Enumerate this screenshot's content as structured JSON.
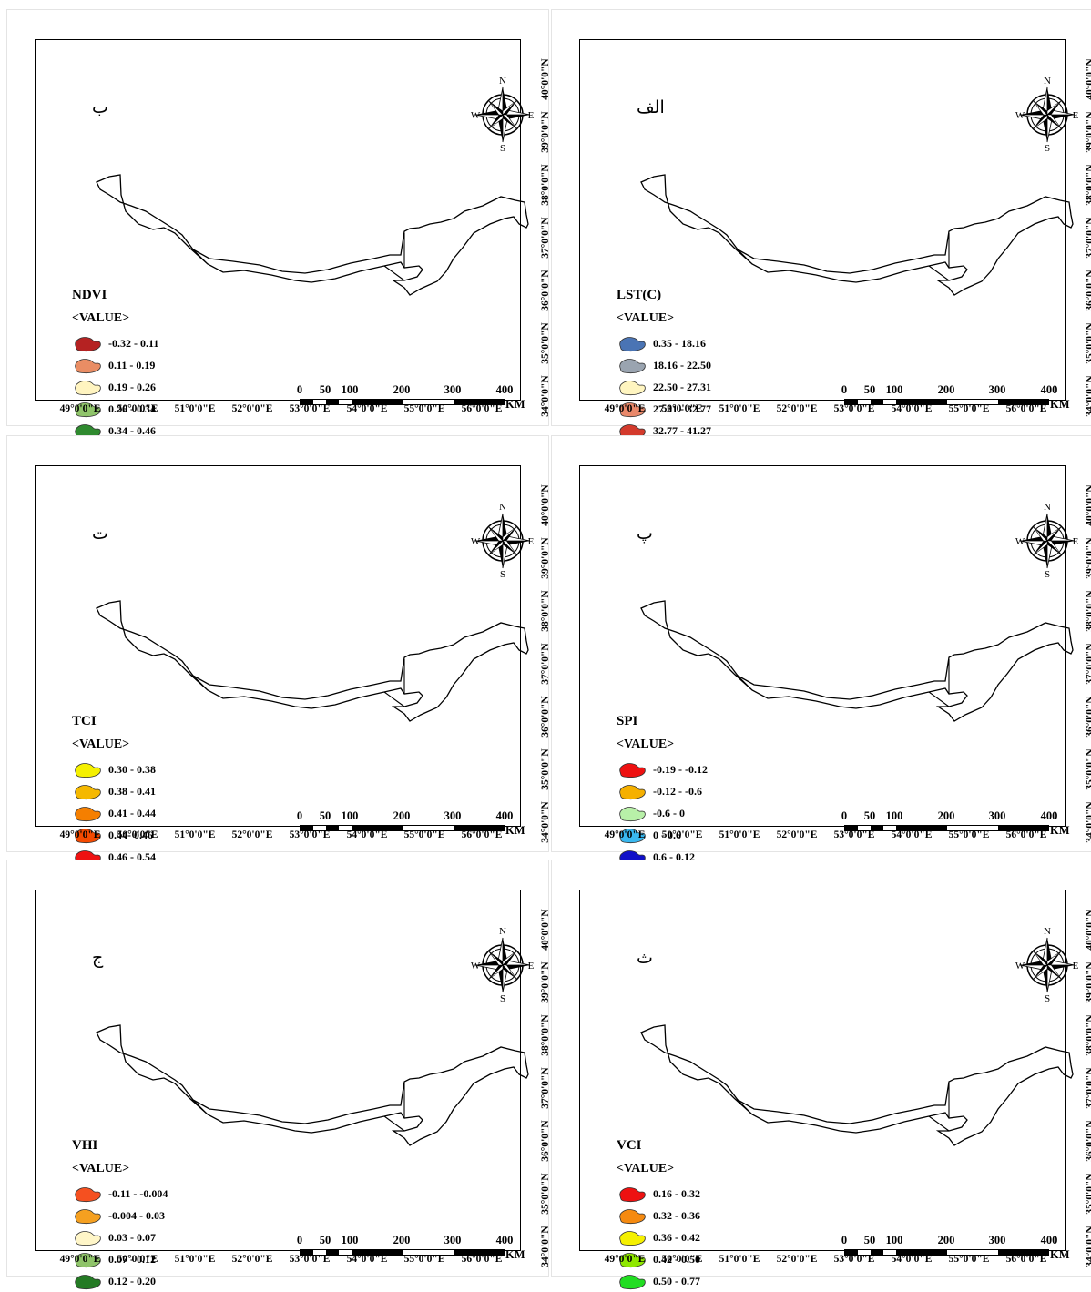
{
  "panels": [
    {
      "letter": "الف",
      "title": "LST(C)",
      "subtitle": "<VALUE>",
      "legend": [
        {
          "label": "0.35 - 18.16",
          "color": "#4a74b4"
        },
        {
          "label": "18.16 - 22.50",
          "color": "#9aa4b0"
        },
        {
          "label": "22.50 - 27.31",
          "color": "#fff5c0"
        },
        {
          "label": "27.31 - 32.77",
          "color": "#e9886a"
        },
        {
          "label": "32.77 - 41.27",
          "color": "#d33a2c"
        }
      ]
    },
    {
      "letter": "ب",
      "title": "NDVI",
      "subtitle": "<VALUE>",
      "legend": [
        {
          "label": "-0.32 - 0.11",
          "color": "#b52222"
        },
        {
          "label": "0.11 - 0.19",
          "color": "#e98d64"
        },
        {
          "label": "0.19 - 0.26",
          "color": "#fff4c0"
        },
        {
          "label": "0.26 - 0.34",
          "color": "#8fc46a"
        },
        {
          "label": "0.34 - 0.46",
          "color": "#2f8a2f"
        }
      ]
    },
    {
      "letter": "پ",
      "title": "SPI",
      "subtitle": "<VALUE>",
      "legend": [
        {
          "label": "-0.19 - -0.12",
          "color": "#ee1111"
        },
        {
          "label": "-0.12 - -0.6",
          "color": "#f5b000"
        },
        {
          "label": "-0.6 - 0",
          "color": "#b8f0a8"
        },
        {
          "label": "0 - 0.6",
          "color": "#39b8f0"
        },
        {
          "label": "0.6 - 0.12",
          "color": "#1010c8"
        }
      ]
    },
    {
      "letter": "ت",
      "title": "TCI",
      "subtitle": "<VALUE>",
      "legend": [
        {
          "label": "0.30 - 0.38",
          "color": "#f5f000"
        },
        {
          "label": "0.38 - 0.41",
          "color": "#f5b800"
        },
        {
          "label": "0.41 - 0.44",
          "color": "#f57f00"
        },
        {
          "label": "0.44- 0.46",
          "color": "#f54a00"
        },
        {
          "label": "0.46 - 0.54",
          "color": "#ee1111"
        }
      ]
    },
    {
      "letter": "ث",
      "title": "VCI",
      "subtitle": "<VALUE>",
      "legend": [
        {
          "label": "0.16 - 0.32",
          "color": "#ee1111"
        },
        {
          "label": "0.32 - 0.36",
          "color": "#f58a10"
        },
        {
          "label": "0.36 - 0.42",
          "color": "#f5f000"
        },
        {
          "label": "0.42 - 0.50",
          "color": "#8fe800"
        },
        {
          "label": "0.50 - 0.77",
          "color": "#22dd22"
        }
      ]
    },
    {
      "letter": "ج",
      "title": "VHI",
      "subtitle": "<VALUE>",
      "legend": [
        {
          "label": "-0.11 - -0.004",
          "color": "#f55020"
        },
        {
          "label": "-0.004 - 0.03",
          "color": "#f5a020"
        },
        {
          "label": "0.03 - 0.07",
          "color": "#fff6c8"
        },
        {
          "label": "0.07 - 0.12",
          "color": "#8fc46a"
        },
        {
          "label": "0.12 - 0.20",
          "color": "#247a24"
        }
      ]
    }
  ],
  "compass": {
    "n": "N",
    "s": "S",
    "e": "E",
    "w": "W"
  },
  "scale": {
    "labels": [
      "0",
      "50",
      "100",
      "200",
      "300",
      "400"
    ],
    "unit": "KM"
  },
  "longitudes": [
    "49°0'0\"E",
    "50°0'0\"E",
    "51°0'0\"E",
    "52°0'0\"E",
    "53°0'0\"E",
    "54°0'0\"E",
    "55°0'0\"E",
    "56°0'0\"E"
  ],
  "latitudes": [
    "34°0'0\"N",
    "35°0'0\"N",
    "36°0'0\"N",
    "37°0'0\"N",
    "38°0'0\"N",
    "39°0'0\"N",
    "40°0'0\"N"
  ]
}
